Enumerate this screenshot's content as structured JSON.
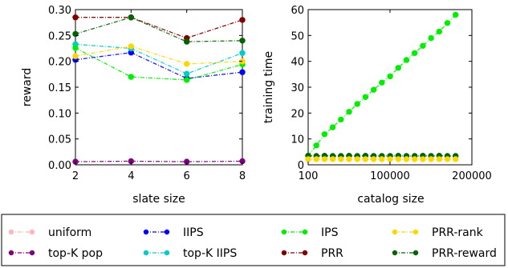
{
  "colors": {
    "uniform": "#ffb6c1",
    "topk_pop": "#800080",
    "iips": "#0000ff",
    "topk_iips": "#00cccc",
    "ips": "#00ee00",
    "prr": "#800000",
    "prr_rank": "#ffd700",
    "prr_reward": "#006400"
  },
  "chart_data": [
    {
      "type": "line",
      "xlabel": "slate size",
      "ylabel": "reward",
      "x": [
        2,
        4,
        6,
        8
      ],
      "xlim": [
        2,
        8
      ],
      "ylim": [
        0,
        0.3
      ],
      "xticks": [
        "2",
        "4",
        "6",
        "8"
      ],
      "yticks": [
        "0.00",
        "0.05",
        "0.10",
        "0.15",
        "0.20",
        "0.25",
        "0.30"
      ],
      "grid": false,
      "series": [
        {
          "name": "uniform",
          "color": "#ffb6c1",
          "values": [
            0.285,
            0.285,
            0.245,
            0.28
          ]
        },
        {
          "name": "top-K pop",
          "color": "#800080",
          "values": [
            0.006,
            0.007,
            0.006,
            0.007
          ]
        },
        {
          "name": "IIPS",
          "color": "#0000ff",
          "values": [
            0.203,
            0.217,
            0.167,
            0.179
          ]
        },
        {
          "name": "top-K IIPS",
          "color": "#00cccc",
          "values": [
            0.233,
            0.225,
            0.176,
            0.216
          ]
        },
        {
          "name": "IPS",
          "color": "#00ee00",
          "values": [
            0.226,
            0.17,
            0.164,
            0.194
          ]
        },
        {
          "name": "PRR",
          "color": "#800000",
          "values": [
            0.285,
            0.285,
            0.245,
            0.28
          ]
        },
        {
          "name": "PRR-rank",
          "color": "#ffd700",
          "values": [
            0.21,
            0.229,
            0.195,
            0.2
          ]
        },
        {
          "name": "PRR-reward",
          "color": "#006400",
          "values": [
            0.253,
            0.285,
            0.238,
            0.24
          ]
        }
      ]
    },
    {
      "type": "line",
      "xlabel": "catalog size",
      "ylabel": "training time",
      "x": [
        100,
        10100,
        20100,
        30100,
        40100,
        50100,
        60100,
        70100,
        80100,
        90100,
        100100,
        110100,
        120100,
        130100,
        140100,
        150100,
        160100,
        170100,
        180100
      ],
      "xlim": [
        100,
        200000
      ],
      "ylim": [
        0,
        60
      ],
      "xticks": [
        "100",
        "100000",
        "200000"
      ],
      "yticks": [
        "0",
        "10",
        "20",
        "30",
        "40",
        "50",
        "60"
      ],
      "grid": false,
      "series": [
        {
          "name": "IPS",
          "color": "#00ee00",
          "values": [
            3.5,
            7.5,
            11.8,
            14.5,
            17.5,
            20.5,
            23.5,
            26.2,
            29.0,
            31.8,
            34.2,
            37.5,
            40.5,
            43.2,
            46.0,
            49.0,
            51.5,
            54.8,
            58.0
          ]
        },
        {
          "name": "PRR-reward",
          "color": "#006400",
          "values": [
            3.5,
            3.4,
            3.5,
            3.4,
            3.4,
            3.5,
            3.4,
            3.5,
            3.4,
            3.4,
            3.4,
            3.5,
            3.4,
            3.4,
            3.5,
            3.4,
            3.5,
            3.4,
            3.4
          ]
        },
        {
          "name": "PRR-rank",
          "color": "#ffd700",
          "values": [
            2.2,
            2.2,
            2.2,
            2.2,
            2.2,
            2.2,
            2.2,
            2.2,
            2.2,
            2.2,
            2.2,
            2.2,
            2.2,
            2.2,
            2.2,
            2.2,
            2.2,
            2.2,
            2.2
          ]
        }
      ]
    }
  ],
  "legend": {
    "entries": [
      {
        "label": "uniform",
        "color": "#ffb6c1"
      },
      {
        "label": "IIPS",
        "color": "#0000ff"
      },
      {
        "label": "IPS",
        "color": "#00ee00"
      },
      {
        "label": "PRR-rank",
        "color": "#ffd700"
      },
      {
        "label": "top-K pop",
        "color": "#800080"
      },
      {
        "label": "top-K IIPS",
        "color": "#00cccc"
      },
      {
        "label": "PRR",
        "color": "#800000"
      },
      {
        "label": "PRR-reward",
        "color": "#006400"
      }
    ]
  }
}
